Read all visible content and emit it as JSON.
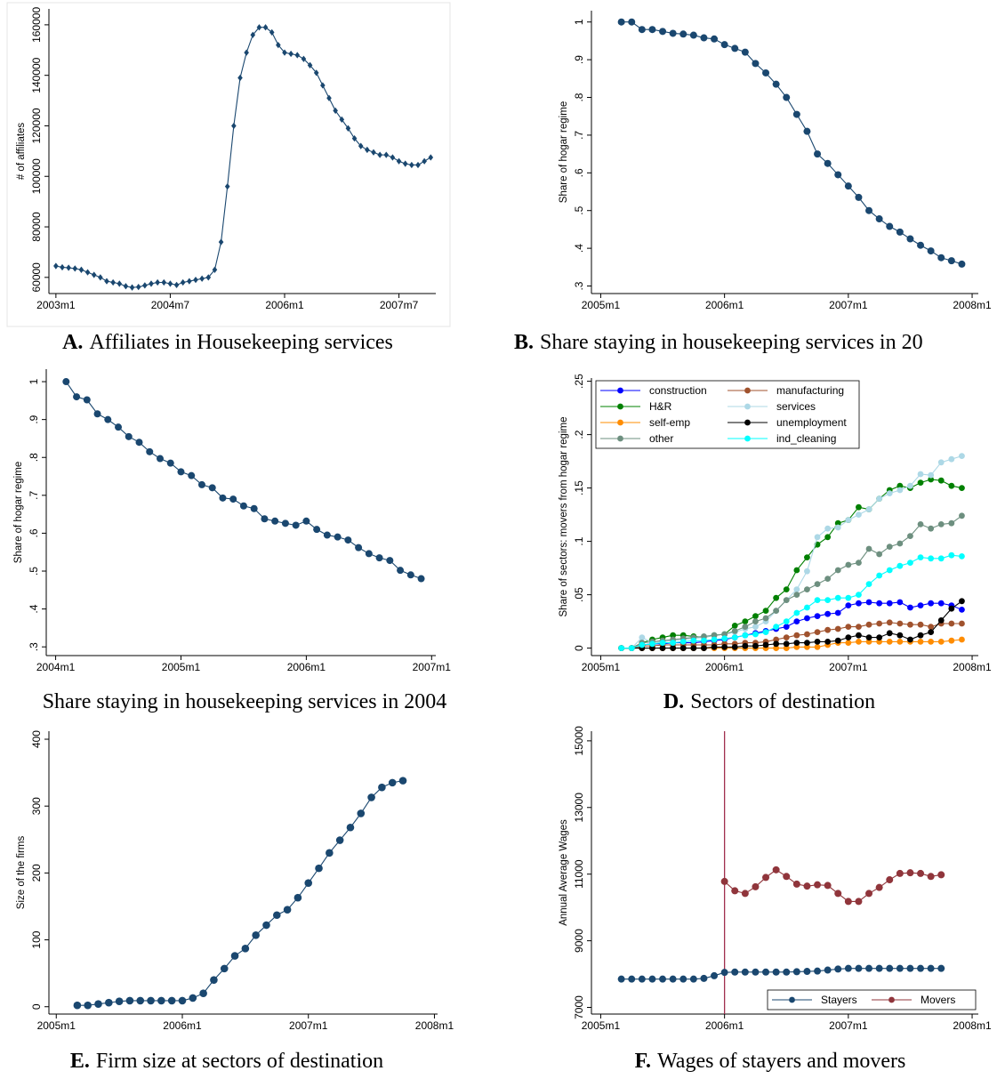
{
  "chart_data": [
    {
      "type": "line",
      "label": "A.",
      "caption": "Affiliates in Housekeeping services",
      "ylabel": "# of affiliates",
      "marker": "diamond",
      "x": [
        516,
        517,
        518,
        519,
        520,
        521,
        522,
        523,
        524,
        525,
        526,
        527,
        528,
        529,
        530,
        531,
        532,
        533,
        534,
        535,
        536,
        537,
        538,
        539,
        540,
        541,
        542,
        543,
        544,
        545,
        546,
        547,
        548,
        549,
        550,
        551,
        552,
        553,
        554,
        555,
        556,
        557,
        558,
        559,
        560,
        561,
        562,
        563,
        564,
        565,
        566,
        567,
        568,
        569,
        570,
        571,
        572,
        573,
        574,
        575
      ],
      "series": [
        {
          "color": "#1a476f",
          "values": [
            64500,
            64000,
            63800,
            63500,
            63000,
            62000,
            61000,
            60000,
            58500,
            58000,
            57500,
            56500,
            56000,
            56200,
            56800,
            57500,
            58000,
            58000,
            57500,
            57000,
            58000,
            58500,
            59000,
            59500,
            60000,
            63000,
            74000,
            96000,
            120000,
            139000,
            149000,
            156000,
            159000,
            159000,
            157000,
            152000,
            149000,
            148500,
            148000,
            146500,
            144000,
            141000,
            136000,
            131000,
            126000,
            122500,
            119000,
            115000,
            112000,
            110500,
            109500,
            108500,
            108500,
            107500,
            106000,
            105000,
            104500,
            104500,
            106000,
            107500
          ]
        }
      ],
      "xlim": [
        514.9,
        575.8
      ],
      "xticks": [
        {
          "value": 516,
          "label": "2003m1"
        },
        {
          "value": 534,
          "label": "2004m7"
        },
        {
          "value": 552,
          "label": "2006m1"
        },
        {
          "value": 570,
          "label": "2007m7"
        }
      ],
      "ylim": [
        53600,
        166300
      ],
      "yticks": [
        60000,
        80000,
        100000,
        120000,
        140000,
        160000
      ]
    },
    {
      "type": "line",
      "label": "B.",
      "caption": "Share staying in housekeeping services in 20",
      "ylabel": "Share of hogar regime",
      "marker": "circle",
      "x": [
        542,
        543,
        544,
        545,
        546,
        547,
        548,
        549,
        550,
        551,
        552,
        553,
        554,
        555,
        556,
        557,
        558,
        559,
        560,
        561,
        562,
        563,
        564,
        565,
        566,
        567,
        568,
        569,
        570,
        571,
        572,
        573,
        574,
        575
      ],
      "series": [
        {
          "color": "#1a476f",
          "values": [
            1,
            1,
            0.98,
            0.98,
            0.975,
            0.97,
            0.968,
            0.965,
            0.958,
            0.955,
            0.94,
            0.93,
            0.92,
            0.89,
            0.865,
            0.835,
            0.8,
            0.755,
            0.71,
            0.65,
            0.625,
            0.595,
            0.565,
            0.535,
            0.5,
            0.478,
            0.458,
            0.443,
            0.425,
            0.408,
            0.393,
            0.375,
            0.367,
            0.358
          ]
        }
      ],
      "xlim": [
        539.1,
        576.6
      ],
      "xticks": [
        {
          "value": 540,
          "label": "2005m1"
        },
        {
          "value": 552,
          "label": "2006m1"
        },
        {
          "value": 564,
          "label": "2007m1"
        },
        {
          "value": 576,
          "label": "2008m1"
        }
      ],
      "ylim": [
        0.28,
        1.03
      ],
      "yticks": [
        {
          "value": 0.3,
          "label": ".3"
        },
        {
          "value": 0.4,
          "label": ".4"
        },
        {
          "value": 0.5,
          "label": ".5"
        },
        {
          "value": 0.6,
          "label": ".6"
        },
        {
          "value": 0.7,
          "label": ".7"
        },
        {
          "value": 0.8,
          "label": ".8"
        },
        {
          "value": 0.9,
          "label": ".9"
        },
        1
      ]
    },
    {
      "type": "line",
      "caption": "Share staying in housekeeping services in 2004",
      "ylabel": "Share of hogar regime",
      "marker": "circle",
      "x": [
        529,
        530,
        531,
        532,
        533,
        534,
        535,
        536,
        537,
        538,
        539,
        540,
        541,
        542,
        543,
        544,
        545,
        546,
        547,
        548,
        549,
        550,
        551,
        552,
        553,
        554,
        555,
        556,
        557,
        558,
        559,
        560,
        561,
        562,
        563
      ],
      "series": [
        {
          "color": "#1a476f",
          "values": [
            1,
            0.96,
            0.952,
            0.915,
            0.9,
            0.88,
            0.855,
            0.84,
            0.815,
            0.797,
            0.785,
            0.762,
            0.752,
            0.728,
            0.72,
            0.693,
            0.69,
            0.672,
            0.665,
            0.638,
            0.632,
            0.626,
            0.621,
            0.632,
            0.61,
            0.595,
            0.59,
            0.582,
            0.562,
            0.546,
            0.535,
            0.528,
            0.502,
            0.49,
            0.48
          ]
        }
      ],
      "xlim": [
        527.1,
        564.4
      ],
      "xticks": [
        {
          "value": 528,
          "label": "2004m1"
        },
        {
          "value": 540,
          "label": "2005m1"
        },
        {
          "value": 552,
          "label": "2006m1"
        },
        {
          "value": 564,
          "label": "2007m1"
        }
      ],
      "ylim": [
        0.277,
        1.033
      ],
      "yticks": [
        {
          "value": 0.3,
          "label": ".3"
        },
        {
          "value": 0.4,
          "label": ".4"
        },
        {
          "value": 0.5,
          "label": ".5"
        },
        {
          "value": 0.6,
          "label": ".6"
        },
        {
          "value": 0.7,
          "label": ".7"
        },
        {
          "value": 0.8,
          "label": ".8"
        },
        {
          "value": 0.9,
          "label": ".9"
        },
        1
      ]
    },
    {
      "type": "line",
      "label": "D.",
      "caption": "Sectors of destination",
      "ylabel": "Share of sectors: movers from hogar regime",
      "marker": "circle",
      "legend": "top-left",
      "x": [
        542,
        543,
        544,
        545,
        546,
        547,
        548,
        549,
        550,
        551,
        552,
        553,
        554,
        555,
        556,
        557,
        558,
        559,
        560,
        561,
        562,
        563,
        564,
        565,
        566,
        567,
        568,
        569,
        570,
        571,
        572,
        573,
        574,
        575
      ],
      "series": [
        {
          "name": "construction",
          "color": "#0000ff",
          "values": [
            0,
            0,
            0.003,
            0.004,
            0.004,
            0.005,
            0.005,
            0.005,
            0.006,
            0.007,
            0.008,
            0.01,
            0.012,
            0.014,
            0.016,
            0.018,
            0.02,
            0.025,
            0.028,
            0.03,
            0.032,
            0.033,
            0.04,
            0.042,
            0.043,
            0.042,
            0.042,
            0.043,
            0.038,
            0.04,
            0.042,
            0.042,
            0.04,
            0.036
          ]
        },
        {
          "name": "manufacturing",
          "color": "#a0522d",
          "values": [
            0,
            0,
            0.002,
            0.002,
            0.003,
            0.003,
            0.003,
            0.003,
            0.003,
            0.003,
            0.004,
            0.004,
            0.005,
            0.005,
            0.006,
            0.008,
            0.01,
            0.012,
            0.013,
            0.015,
            0.017,
            0.018,
            0.02,
            0.02,
            0.022,
            0.023,
            0.024,
            0.023,
            0.022,
            0.022,
            0.02,
            0.023,
            0.023,
            0.023
          ]
        },
        {
          "name": "H&R",
          "color": "#008000",
          "values": [
            0,
            0,
            0.005,
            0.008,
            0.01,
            0.012,
            0.012,
            0.011,
            0.01,
            0.012,
            0.013,
            0.021,
            0.025,
            0.03,
            0.035,
            0.047,
            0.055,
            0.073,
            0.085,
            0.097,
            0.104,
            0.117,
            0.12,
            0.132,
            0.13,
            0.14,
            0.148,
            0.152,
            0.15,
            0.155,
            0.158,
            0.157,
            0.152,
            0.15
          ]
        },
        {
          "name": "services",
          "color": "#add8e6",
          "values": [
            0,
            0,
            0.01,
            0.005,
            0.006,
            0.007,
            0.008,
            0.009,
            0.01,
            0.012,
            0.013,
            0.015,
            0.018,
            0.02,
            0.025,
            0.035,
            0.045,
            0.055,
            0.072,
            0.104,
            0.112,
            0.113,
            0.12,
            0.125,
            0.13,
            0.14,
            0.145,
            0.148,
            0.152,
            0.163,
            0.162,
            0.174,
            0.177,
            0.18
          ]
        },
        {
          "name": "self-emp",
          "color": "#ff8c00",
          "values": [
            0,
            0,
            0,
            0,
            0,
            0,
            0,
            0,
            0,
            0,
            0,
            0,
            0,
            0,
            0,
            0,
            0,
            0.001,
            0.001,
            0.001,
            0.003,
            0.005,
            0.005,
            0.006,
            0.006,
            0.006,
            0.006,
            0.006,
            0.006,
            0.006,
            0.006,
            0.006,
            0.007,
            0.008
          ]
        },
        {
          "name": "unemployment",
          "color": "#000000",
          "values": [
            0,
            0,
            0,
            0,
            0,
            0,
            0,
            0,
            0,
            0.001,
            0.001,
            0.001,
            0.002,
            0.002,
            0.003,
            0.004,
            0.004,
            0.005,
            0.005,
            0.006,
            0.006,
            0.007,
            0.01,
            0.012,
            0.01,
            0.01,
            0.014,
            0.012,
            0.008,
            0.012,
            0.015,
            0.026,
            0.037,
            0.044
          ]
        },
        {
          "name": "other",
          "color": "#6d8f7f",
          "values": [
            0,
            0,
            0.005,
            0.006,
            0.007,
            0.008,
            0.009,
            0.01,
            0.011,
            0.012,
            0.013,
            0.016,
            0.02,
            0.025,
            0.028,
            0.035,
            0.045,
            0.05,
            0.055,
            0.06,
            0.065,
            0.073,
            0.078,
            0.08,
            0.093,
            0.088,
            0.095,
            0.098,
            0.105,
            0.116,
            0.112,
            0.116,
            0.117,
            0.124
          ]
        },
        {
          "name": "ind_cleaning",
          "color": "#00ffff",
          "values": [
            0,
            0,
            0.003,
            0.004,
            0.005,
            0.005,
            0.006,
            0.007,
            0.007,
            0.008,
            0.009,
            0.01,
            0.012,
            0.013,
            0.015,
            0.02,
            0.025,
            0.033,
            0.038,
            0.045,
            0.045,
            0.047,
            0.047,
            0.05,
            0.06,
            0.068,
            0.073,
            0.077,
            0.08,
            0.085,
            0.084,
            0.084,
            0.087,
            0.086
          ]
        }
      ],
      "xlim": [
        539.1,
        576.6
      ],
      "xticks": [
        {
          "value": 540,
          "label": "2005m1"
        },
        {
          "value": 552,
          "label": "2006m1"
        },
        {
          "value": 564,
          "label": "2007m1"
        },
        {
          "value": 576,
          "label": "2008m1"
        }
      ],
      "ylim": [
        -0.007,
        0.253
      ],
      "yticks": [
        0,
        {
          "value": 0.05,
          "label": ".05"
        },
        {
          "value": 0.1,
          "label": ".1"
        },
        {
          "value": 0.15,
          "label": ".15"
        },
        {
          "value": 0.2,
          "label": ".2"
        },
        {
          "value": 0.25,
          "label": ".25"
        }
      ]
    },
    {
      "type": "line",
      "label": "E.",
      "caption": "Firm size at sectors of destination",
      "ylabel": "Size of the firms",
      "marker": "circle",
      "x": [
        542,
        543,
        544,
        545,
        546,
        547,
        548,
        549,
        550,
        551,
        552,
        553,
        554,
        555,
        556,
        557,
        558,
        559,
        560,
        561,
        562,
        563,
        564,
        565,
        566,
        567,
        568,
        569,
        570,
        571,
        572,
        573
      ],
      "series": [
        {
          "color": "#1a476f",
          "values": [
            2,
            2,
            4,
            6,
            8,
            9,
            9,
            9,
            9,
            9,
            9,
            13,
            20,
            40,
            57,
            76,
            87,
            107,
            122,
            137,
            145,
            163,
            185,
            207,
            230,
            249,
            268,
            289,
            313,
            328,
            335,
            338
          ]
        }
      ],
      "xlim": [
        539.3,
        576.3
      ],
      "xticks": [
        {
          "value": 540,
          "label": "2005m1"
        },
        {
          "value": 552,
          "label": "2006m1"
        },
        {
          "value": 564,
          "label": "2007m1"
        },
        {
          "value": 576,
          "label": "2008m1"
        }
      ],
      "ylim": [
        -11,
        412
      ],
      "yticks": [
        0,
        100,
        200,
        300,
        400
      ]
    },
    {
      "type": "line",
      "label": "F.",
      "caption": "Wages of stayers and movers",
      "ylabel": "Annual Average Wages",
      "marker": "circle",
      "legend": "bottom-right",
      "x": [
        542,
        543,
        544,
        545,
        546,
        547,
        548,
        549,
        550,
        551,
        552,
        553,
        554,
        555,
        556,
        557,
        558,
        559,
        560,
        561,
        562,
        563,
        564,
        565,
        566,
        567,
        568,
        569,
        570,
        571,
        572,
        573
      ],
      "series": [
        {
          "name": "Stayers",
          "color": "#1a476f",
          "values": [
            7850,
            7850,
            7850,
            7850,
            7850,
            7850,
            7850,
            7850,
            7870,
            7950,
            8050,
            8060,
            8060,
            8060,
            8060,
            8060,
            8060,
            8070,
            8080,
            8090,
            8120,
            8150,
            8170,
            8170,
            8170,
            8170,
            8170,
            8170,
            8170,
            8170,
            8170,
            8170
          ]
        },
        {
          "name": "Movers",
          "color": "#90353b",
          "values": [
            null,
            null,
            null,
            null,
            null,
            null,
            null,
            null,
            null,
            null,
            10780,
            10500,
            10420,
            10620,
            10900,
            11130,
            10930,
            10700,
            10640,
            10680,
            10660,
            10420,
            10180,
            10180,
            10420,
            10600,
            10830,
            11020,
            11040,
            11020,
            10930,
            10980
          ]
        }
      ],
      "vline": {
        "x": 552,
        "color": "#a0304f"
      },
      "xlim": [
        539.1,
        576.6
      ],
      "xticks": [
        {
          "value": 540,
          "label": "2005m1"
        },
        {
          "value": 552,
          "label": "2006m1"
        },
        {
          "value": 564,
          "label": "2007m1"
        },
        {
          "value": 576,
          "label": "2008m1"
        }
      ],
      "ylim": [
        6800,
        15290
      ],
      "yticks": [
        7000,
        9000,
        11000,
        13000,
        15000
      ]
    }
  ]
}
